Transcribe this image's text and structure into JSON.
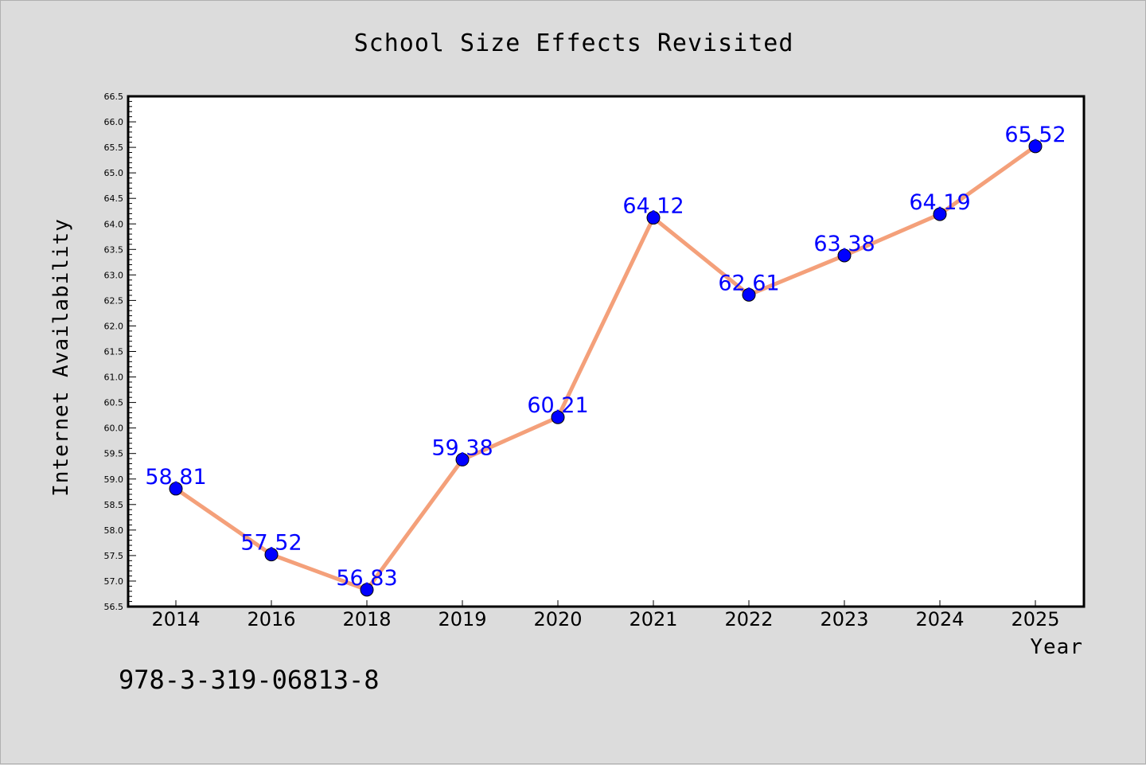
{
  "chart_data": {
    "type": "line",
    "title": "School Size Effects Revisited",
    "xlabel": "Year",
    "ylabel": "Internet Availability",
    "categories": [
      "2014",
      "2016",
      "2018",
      "2019",
      "2020",
      "2021",
      "2022",
      "2023",
      "2024",
      "2025"
    ],
    "series": [
      {
        "values": [
          58.81,
          57.52,
          56.83,
          59.38,
          60.21,
          64.12,
          62.61,
          63.38,
          64.19,
          65.52
        ],
        "line_color": "#f4a07a",
        "marker_color": "#0000ff"
      }
    ],
    "data_labels": [
      "58.81",
      "57.52",
      "56.83",
      "59.38",
      "60.21",
      "64.12",
      "62.61",
      "63.38",
      "64.19",
      "65.52"
    ],
    "ylim": [
      56.5,
      66.5
    ],
    "yticks": [
      "56.5",
      "57.0",
      "57.5",
      "58.0",
      "58.5",
      "59.0",
      "59.5",
      "60.0",
      "60.5",
      "61.0",
      "61.5",
      "62.0",
      "62.5",
      "63.0",
      "63.5",
      "64.0",
      "64.5",
      "65.0",
      "65.5",
      "66.0",
      "66.5"
    ],
    "grid": false,
    "legend": "none"
  },
  "footer_text": "978-3-319-06813-8"
}
